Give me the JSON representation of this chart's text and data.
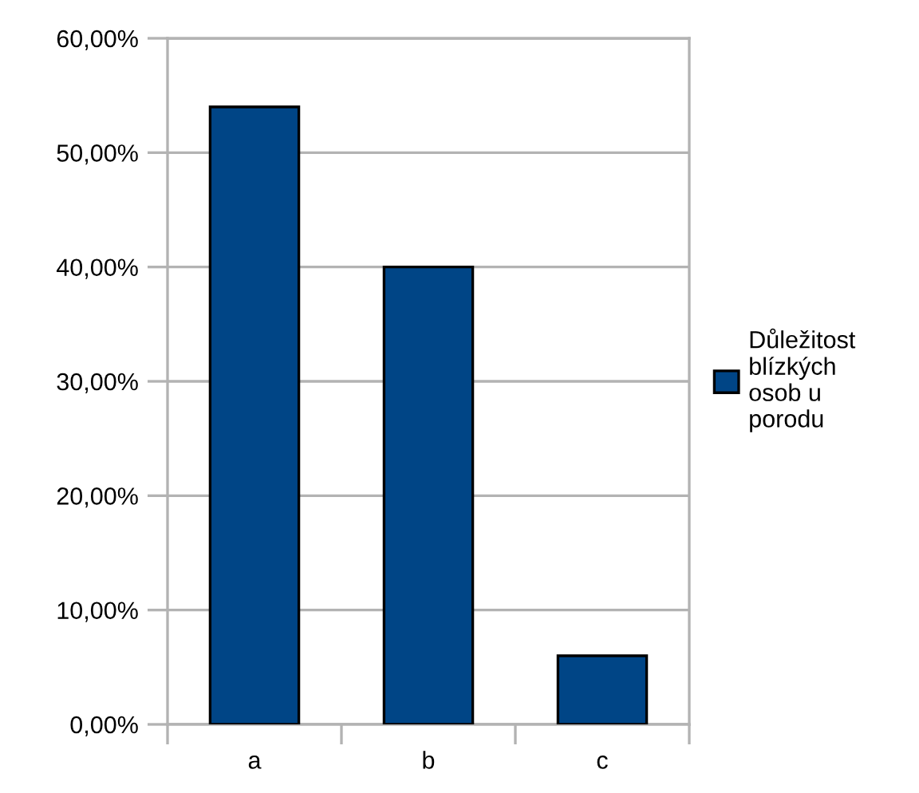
{
  "chart_data": {
    "type": "bar",
    "categories": [
      "a",
      "b",
      "c"
    ],
    "series": [
      {
        "name": "Důležitost\nblízkých\nosob u\nporodu",
        "color": "#004586",
        "values": [
          54,
          40,
          6
        ]
      }
    ],
    "ylim": [
      0,
      60
    ],
    "yticks": [
      {
        "value": 0,
        "label": "0,00%"
      },
      {
        "value": 10,
        "label": "10,00%"
      },
      {
        "value": 20,
        "label": "20,00%"
      },
      {
        "value": 30,
        "label": "30,00%"
      },
      {
        "value": 40,
        "label": "40,00%"
      },
      {
        "value": 50,
        "label": "50,00%"
      },
      {
        "value": 60,
        "label": "60,00%"
      }
    ],
    "grid": "y",
    "legend": "right"
  }
}
